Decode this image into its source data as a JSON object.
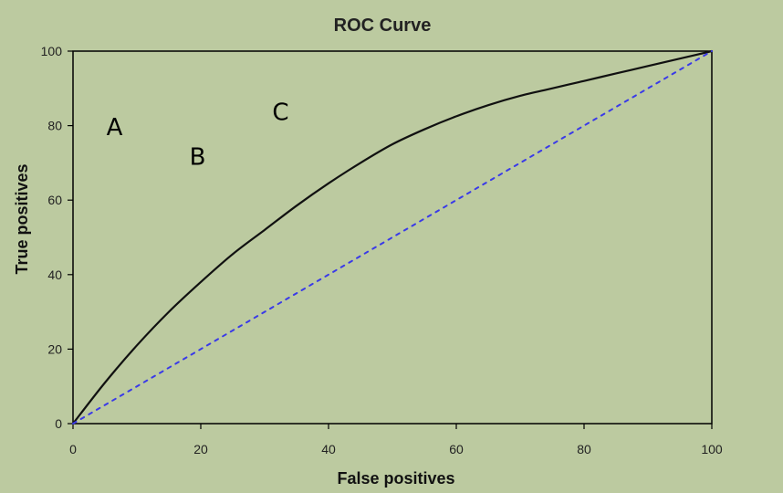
{
  "chart_data": {
    "type": "line",
    "title": "ROC Curve",
    "xlabel": "False positives",
    "ylabel": "True positives",
    "xlim": [
      0,
      100
    ],
    "ylim": [
      0,
      100
    ],
    "x_ticks": [
      "0",
      "20",
      "40",
      "60",
      "80",
      "100"
    ],
    "y_ticks": [
      "0",
      "20",
      "40",
      "60",
      "80",
      "100"
    ],
    "grid": false,
    "legend": "none",
    "colors": {
      "background": "#bccaa0",
      "plot_border": "#000000",
      "roc_curve": "#111111",
      "diagonal": "#3a3ae8"
    },
    "series": [
      {
        "style": "solid",
        "x": [
          0,
          5,
          10,
          15,
          20,
          25,
          30,
          35,
          40,
          45,
          50,
          55,
          60,
          65,
          70,
          75,
          80,
          85,
          90,
          95,
          100
        ],
        "y": [
          0,
          11,
          21,
          30,
          38,
          45.5,
          52,
          58.5,
          64.5,
          70,
          75,
          79,
          82.5,
          85.5,
          88,
          90,
          92,
          94,
          96,
          98,
          100
        ]
      },
      {
        "style": "dashed",
        "x": [
          0,
          100
        ],
        "y": [
          0,
          100
        ]
      }
    ],
    "annotations": [
      {
        "text": "A",
        "x": 6.5,
        "y": 77.5
      },
      {
        "text": "B",
        "x": 19.5,
        "y": 69.5
      },
      {
        "text": "C",
        "x": 32.5,
        "y": 81.5
      }
    ]
  }
}
